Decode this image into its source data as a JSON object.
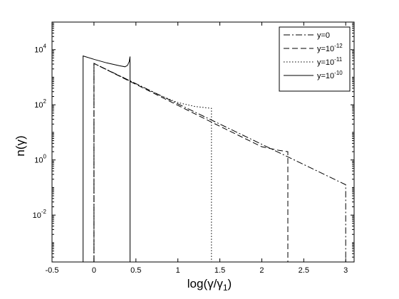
{
  "chart_data": {
    "type": "line",
    "xlabel": "log(γ/γ",
    "xlabel_sub": "1",
    "xlabel_close": ")",
    "ylabel": "n(γ)",
    "xlim": [
      -0.5,
      3.1
    ],
    "ylim_log10": [
      -3.7,
      5
    ],
    "y_scale": "log",
    "grid": false,
    "legend_position": "top-right",
    "x_ticks": [
      {
        "value": -0.5,
        "label": "-0.5"
      },
      {
        "value": 0,
        "label": "0"
      },
      {
        "value": 0.5,
        "label": "0.5"
      },
      {
        "value": 1,
        "label": "1"
      },
      {
        "value": 1.5,
        "label": "1.5"
      },
      {
        "value": 2,
        "label": "2"
      },
      {
        "value": 2.5,
        "label": "2.5"
      },
      {
        "value": 3,
        "label": "3"
      }
    ],
    "y_ticks": [
      {
        "exp": -2,
        "base": "10",
        "sup": "-2"
      },
      {
        "exp": 0,
        "base": "10",
        "sup": "0"
      },
      {
        "exp": 2,
        "base": "10",
        "sup": "2"
      },
      {
        "exp": 4,
        "base": "10",
        "sup": "4"
      }
    ],
    "series": [
      {
        "name": "y=0",
        "legend_base": "y=0",
        "legend_sup": "",
        "dash": "9,3,2,3",
        "points": [
          [
            0,
            -3.7
          ],
          [
            0,
            3.5
          ],
          [
            3.0,
            -0.9
          ],
          [
            3.0,
            -3.7
          ]
        ]
      },
      {
        "name": "y=10^-12",
        "legend_base": "y=10",
        "legend_sup": "-12",
        "dash": "8,4",
        "points": [
          [
            0,
            -3.7
          ],
          [
            0,
            3.5
          ],
          [
            1.5,
            1.22
          ],
          [
            2.0,
            0.48
          ],
          [
            2.2,
            0.35
          ],
          [
            2.31,
            0.3
          ],
          [
            2.31,
            -3.7
          ]
        ]
      },
      {
        "name": "y=10^-11",
        "legend_base": "y=10",
        "legend_sup": "-11",
        "dash": "1.5,2.5",
        "points": [
          [
            0,
            -3.7
          ],
          [
            0,
            3.5
          ],
          [
            0.8,
            2.32
          ],
          [
            1.0,
            2.08
          ],
          [
            1.2,
            1.94
          ],
          [
            1.4,
            1.87
          ],
          [
            1.4,
            -3.7
          ]
        ]
      },
      {
        "name": "y=10^-10",
        "legend_base": "y=10",
        "legend_sup": "-10",
        "dash": "",
        "points": [
          [
            -0.13,
            -3.7
          ],
          [
            -0.13,
            3.77
          ],
          [
            0,
            3.65
          ],
          [
            0.15,
            3.52
          ],
          [
            0.3,
            3.42
          ],
          [
            0.37,
            3.38
          ],
          [
            0.4,
            3.43
          ],
          [
            0.42,
            3.57
          ],
          [
            0.43,
            3.75
          ],
          [
            0.43,
            -3.7
          ]
        ]
      }
    ]
  }
}
